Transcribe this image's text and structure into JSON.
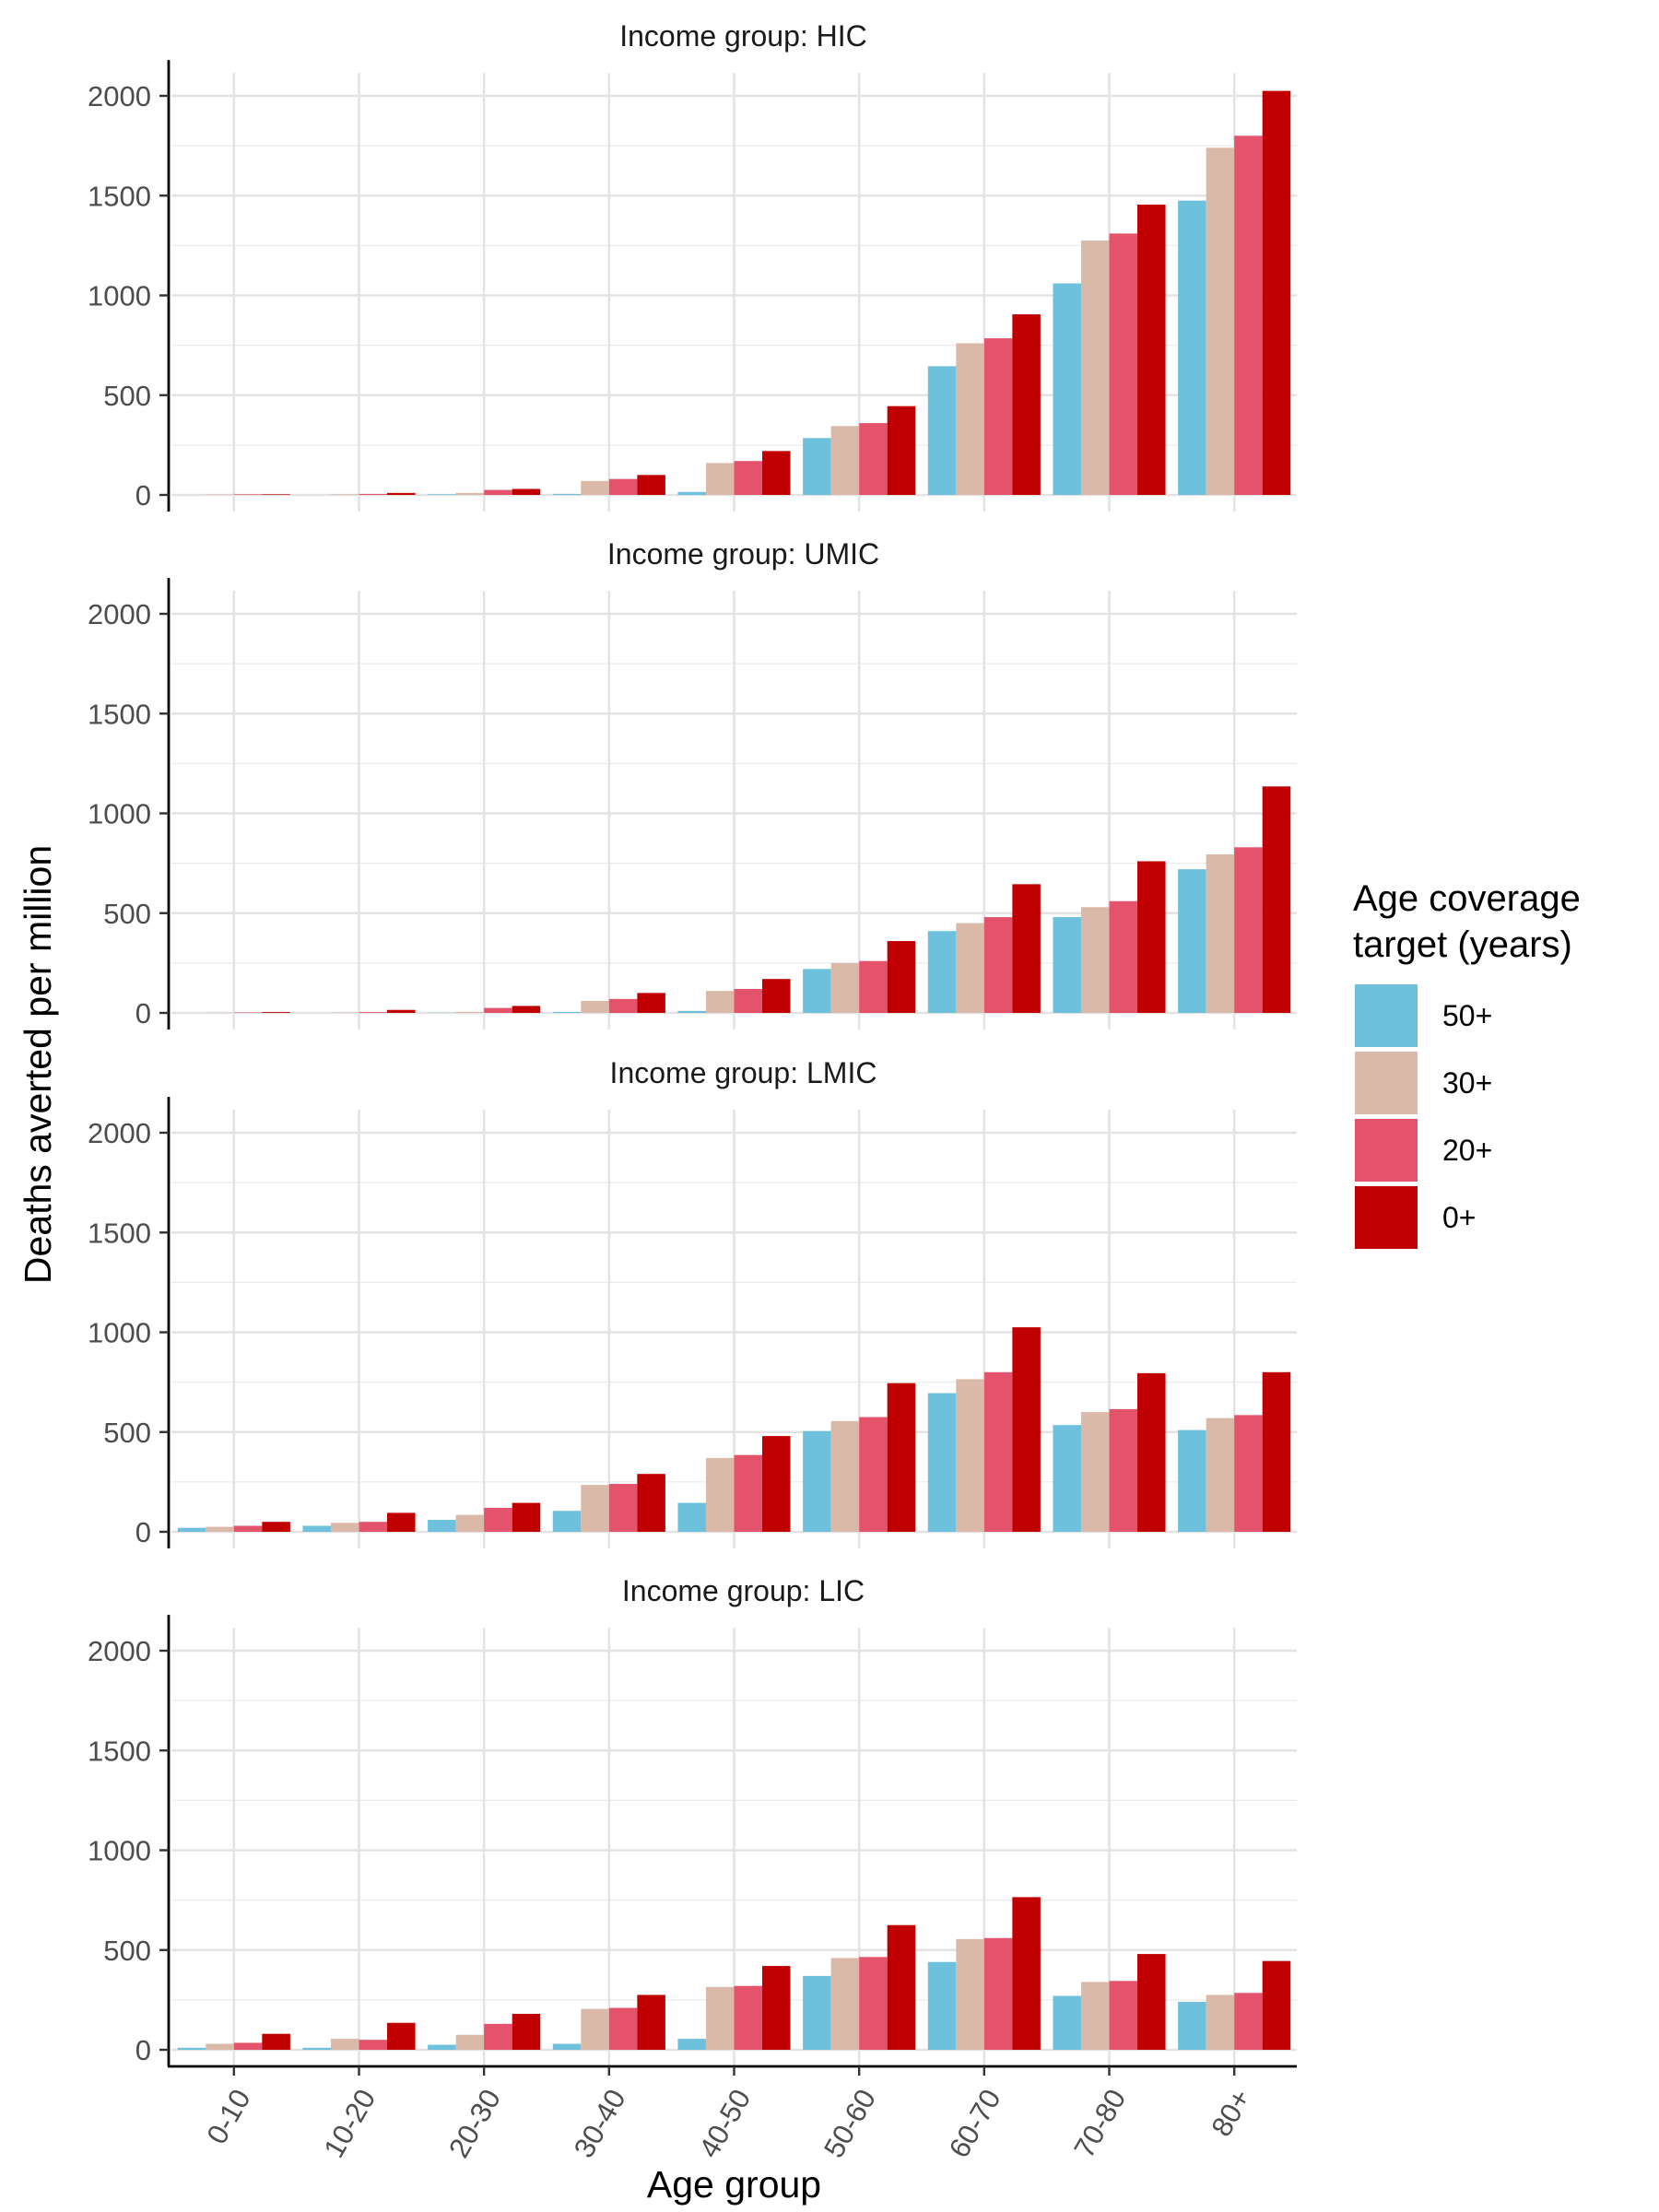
{
  "chart_data": {
    "type": "bar",
    "layout": "faceted-grouped-bar",
    "xlabel": "Age group",
    "ylabel": "Deaths averted per million",
    "ylim": [
      0,
      2050
    ],
    "yticks": [
      0,
      500,
      1000,
      1500,
      2000
    ],
    "grid": true,
    "legend_position": "right",
    "legend": {
      "title_lines": [
        "Age coverage",
        "target (years)"
      ],
      "entries": [
        {
          "label": "50+",
          "color": "#6EC1DC"
        },
        {
          "label": "30+",
          "color": "#DBB9A8"
        },
        {
          "label": "20+",
          "color": "#E4536B"
        },
        {
          "label": "0+",
          "color": "#C00000"
        }
      ]
    },
    "categories": [
      "0-10",
      "10-20",
      "20-30",
      "30-40",
      "40-50",
      "50-60",
      "60-70",
      "70-80",
      "80+"
    ],
    "panels": [
      {
        "strip_label": "Income group: HIC",
        "series": [
          {
            "name": "50+",
            "values": [
              0,
              0,
              3,
              5,
              15,
              285,
              645,
              1060,
              1475
            ]
          },
          {
            "name": "30+",
            "values": [
              2,
              3,
              10,
              70,
              160,
              345,
              760,
              1275,
              1740
            ]
          },
          {
            "name": "20+",
            "values": [
              3,
              5,
              25,
              80,
              170,
              360,
              785,
              1310,
              1800
            ]
          },
          {
            "name": "0+",
            "values": [
              3,
              10,
              30,
              100,
              220,
              445,
              905,
              1455,
              2025
            ]
          }
        ]
      },
      {
        "strip_label": "Income group: UMIC",
        "series": [
          {
            "name": "50+",
            "values": [
              0,
              0,
              1,
              5,
              10,
              220,
              410,
              480,
              720
            ]
          },
          {
            "name": "30+",
            "values": [
              1,
              2,
              5,
              60,
              110,
              250,
              450,
              530,
              795
            ]
          },
          {
            "name": "20+",
            "values": [
              2,
              4,
              25,
              70,
              120,
              260,
              480,
              560,
              830
            ]
          },
          {
            "name": "0+",
            "values": [
              4,
              15,
              35,
              100,
              170,
              360,
              645,
              760,
              1135
            ]
          }
        ]
      },
      {
        "strip_label": "Income group: LMIC",
        "series": [
          {
            "name": "50+",
            "values": [
              20,
              30,
              60,
              105,
              145,
              505,
              695,
              535,
              510
            ]
          },
          {
            "name": "30+",
            "values": [
              25,
              45,
              85,
              235,
              370,
              555,
              765,
              600,
              570
            ]
          },
          {
            "name": "20+",
            "values": [
              30,
              50,
              120,
              240,
              385,
              575,
              800,
              615,
              585
            ]
          },
          {
            "name": "0+",
            "values": [
              50,
              95,
              145,
              290,
              480,
              745,
              1025,
              795,
              800
            ]
          }
        ]
      },
      {
        "strip_label": "Income group: LIC",
        "series": [
          {
            "name": "50+",
            "values": [
              10,
              10,
              25,
              30,
              55,
              370,
              440,
              270,
              240
            ]
          },
          {
            "name": "30+",
            "values": [
              30,
              55,
              75,
              205,
              315,
              460,
              555,
              340,
              275
            ]
          },
          {
            "name": "20+",
            "values": [
              35,
              50,
              130,
              210,
              320,
              465,
              560,
              345,
              285
            ]
          },
          {
            "name": "0+",
            "values": [
              80,
              135,
              180,
              275,
              420,
              625,
              765,
              480,
              445
            ]
          }
        ]
      }
    ]
  }
}
